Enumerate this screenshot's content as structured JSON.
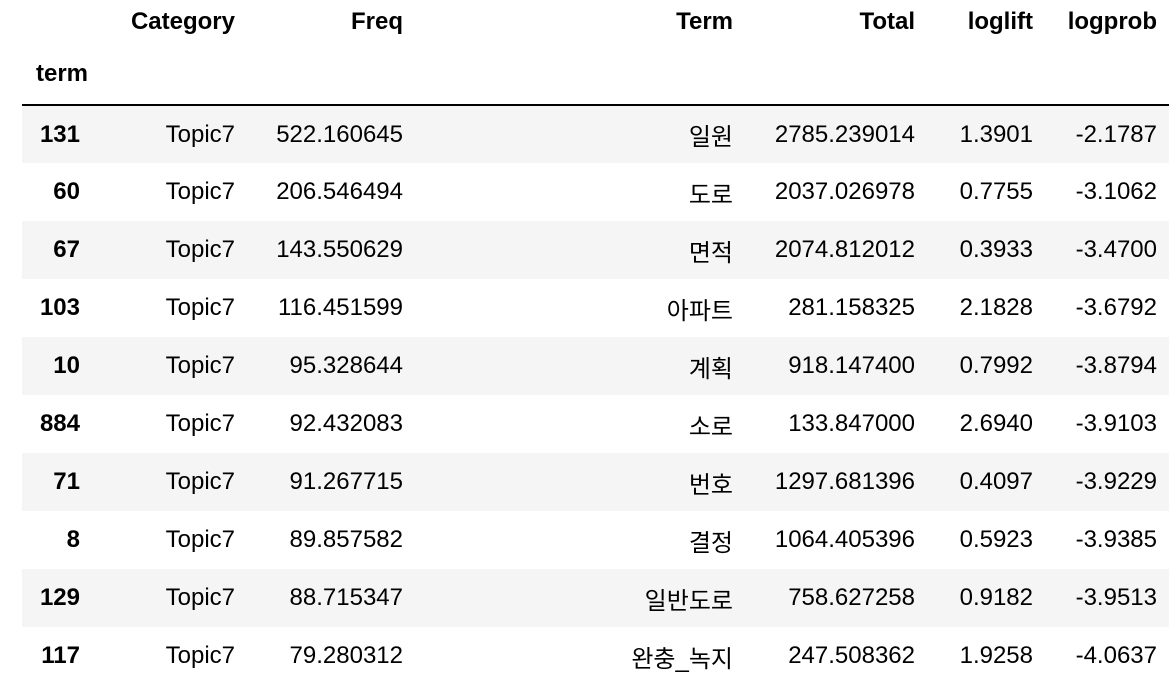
{
  "table": {
    "columns": [
      "Category",
      "Freq",
      "Term",
      "Total",
      "loglift",
      "logprob"
    ],
    "index_name": "term",
    "rows": [
      {
        "index": "131",
        "cells": [
          "Topic7",
          "522.160645",
          "일원",
          "2785.239014",
          "1.3901",
          "-2.1787"
        ]
      },
      {
        "index": "60",
        "cells": [
          "Topic7",
          "206.546494",
          "도로",
          "2037.026978",
          "0.7755",
          "-3.1062"
        ]
      },
      {
        "index": "67",
        "cells": [
          "Topic7",
          "143.550629",
          "면적",
          "2074.812012",
          "0.3933",
          "-3.4700"
        ]
      },
      {
        "index": "103",
        "cells": [
          "Topic7",
          "116.451599",
          "아파트",
          "281.158325",
          "2.1828",
          "-3.6792"
        ]
      },
      {
        "index": "10",
        "cells": [
          "Topic7",
          "95.328644",
          "계획",
          "918.147400",
          "0.7992",
          "-3.8794"
        ]
      },
      {
        "index": "884",
        "cells": [
          "Topic7",
          "92.432083",
          "소로",
          "133.847000",
          "2.6940",
          "-3.9103"
        ]
      },
      {
        "index": "71",
        "cells": [
          "Topic7",
          "91.267715",
          "번호",
          "1297.681396",
          "0.4097",
          "-3.9229"
        ]
      },
      {
        "index": "8",
        "cells": [
          "Topic7",
          "89.857582",
          "결정",
          "1064.405396",
          "0.5923",
          "-3.9385"
        ]
      },
      {
        "index": "129",
        "cells": [
          "Topic7",
          "88.715347",
          "일반도로",
          "758.627258",
          "0.9182",
          "-3.9513"
        ]
      },
      {
        "index": "117",
        "cells": [
          "Topic7",
          "79.280312",
          "완충_녹지",
          "247.508362",
          "1.9258",
          "-4.0637"
        ]
      }
    ]
  }
}
